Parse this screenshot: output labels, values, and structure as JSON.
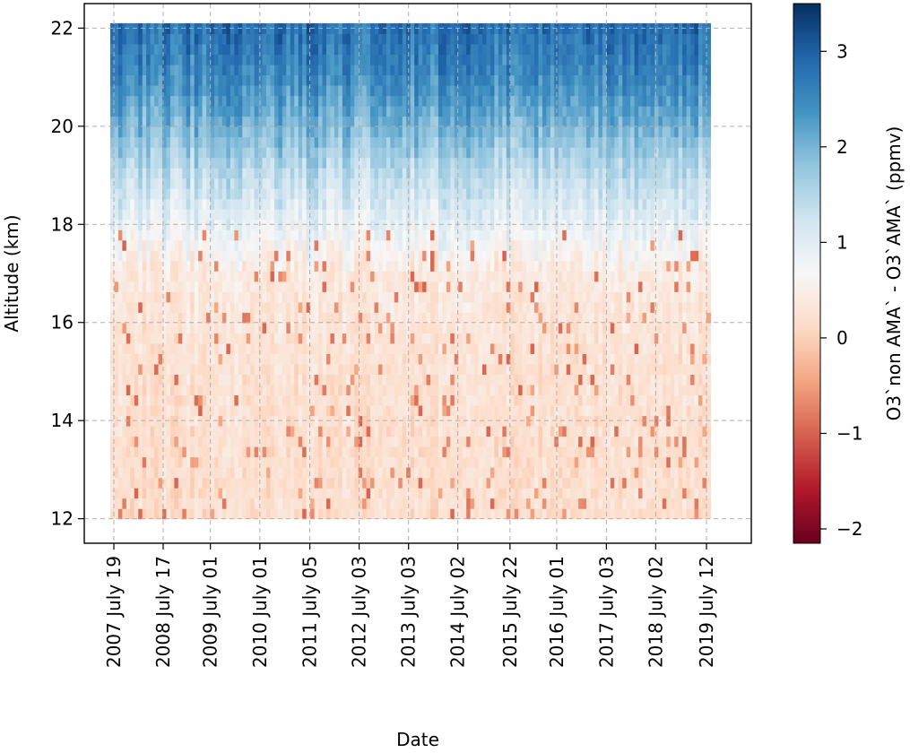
{
  "chart_data": {
    "type": "heatmap",
    "title": "",
    "xlabel": "Date",
    "ylabel": "Altitude (km)",
    "x_ticks": [
      "2007 July 19",
      "2008 July 17",
      "2009 July 01",
      "2010 July 01",
      "2011 July 05",
      "2012 July 03",
      "2013 July 03",
      "2014 July 02",
      "2015 July 22",
      "2016 July 01",
      "2017 July 03",
      "2018 July 02",
      "2019 July 12"
    ],
    "x_range": [
      "2007 July 19",
      "2019 August 10"
    ],
    "y_ticks": [
      12,
      14,
      16,
      18,
      20,
      22
    ],
    "ylim": [
      11.5,
      22.5
    ],
    "colorbar": {
      "label": "O3`non AMA` - O3`AMA`  (ppmv)",
      "ticks": [
        -2,
        -1,
        0,
        1,
        2,
        3
      ],
      "vmin": -2.15,
      "vmax": 3.5,
      "colormap": "RdBu",
      "colormap_stops": [
        "#67001f",
        "#b2182b",
        "#d6604d",
        "#f4a582",
        "#fddbc7",
        "#f7f7f7",
        "#d1e5f0",
        "#92c5de",
        "#4393c3",
        "#2166ac",
        "#053061"
      ]
    },
    "value_profile": {
      "altitudes": [
        12,
        13,
        14,
        15,
        16,
        17,
        18,
        19,
        20,
        21,
        22
      ],
      "mean_difference": [
        0.2,
        0.2,
        0.22,
        0.25,
        0.3,
        0.4,
        0.9,
        1.4,
        2.0,
        2.5,
        2.8
      ]
    },
    "grid": true
  }
}
